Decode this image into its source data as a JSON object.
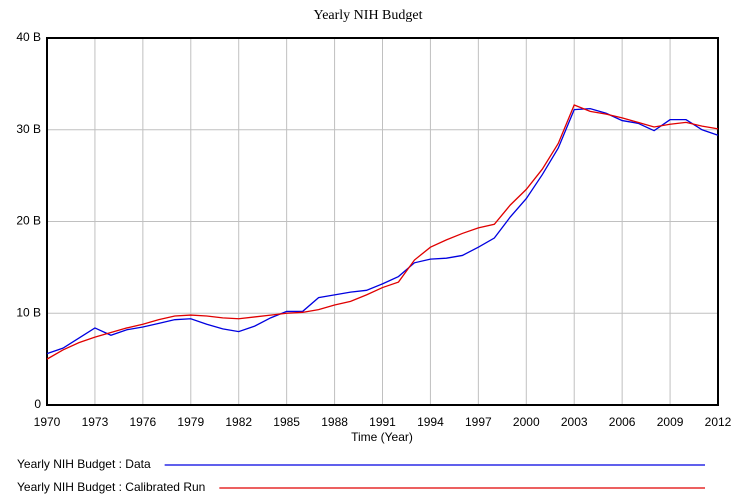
{
  "chart_data": {
    "type": "line",
    "title": "Yearly NIH Budget",
    "xlabel": "Time (Year)",
    "x": [
      1970,
      1971,
      1972,
      1973,
      1974,
      1975,
      1976,
      1977,
      1978,
      1979,
      1980,
      1981,
      1982,
      1983,
      1984,
      1985,
      1986,
      1987,
      1988,
      1989,
      1990,
      1991,
      1992,
      1993,
      1994,
      1995,
      1996,
      1997,
      1998,
      1999,
      2000,
      2001,
      2002,
      2003,
      2004,
      2005,
      2006,
      2007,
      2008,
      2009,
      2010,
      2011,
      2012
    ],
    "series": [
      {
        "name": "Yearly NIH Budget : Data",
        "color": "#0000e0",
        "values": [
          5.6,
          6.2,
          7.3,
          8.4,
          7.6,
          8.2,
          8.5,
          8.9,
          9.3,
          9.4,
          8.8,
          8.3,
          8.0,
          8.6,
          9.5,
          10.2,
          10.2,
          11.7,
          12.0,
          12.3,
          12.5,
          13.2,
          14.0,
          15.5,
          15.9,
          16.0,
          16.3,
          17.2,
          18.2,
          20.5,
          22.5,
          25.1,
          28.0,
          32.2,
          32.3,
          31.8,
          31.0,
          30.7,
          29.9,
          31.1,
          31.1,
          30.0,
          29.4
        ]
      },
      {
        "name": "Yearly NIH Budget : Calibrated Run",
        "color": "#e00000",
        "values": [
          5.0,
          6.0,
          6.8,
          7.4,
          7.9,
          8.4,
          8.8,
          9.3,
          9.7,
          9.8,
          9.7,
          9.5,
          9.4,
          9.6,
          9.8,
          10.0,
          10.1,
          10.4,
          10.9,
          11.3,
          12.0,
          12.8,
          13.4,
          15.8,
          17.2,
          18.0,
          18.7,
          19.3,
          19.7,
          21.8,
          23.5,
          25.7,
          28.5,
          32.7,
          32.0,
          31.7,
          31.3,
          30.8,
          30.3,
          30.6,
          30.8,
          30.4,
          30.1
        ]
      }
    ],
    "xlim": [
      1970,
      2012
    ],
    "xticks": [
      1970,
      1973,
      1976,
      1979,
      1982,
      1985,
      1988,
      1991,
      1994,
      1997,
      2000,
      2003,
      2006,
      2009,
      2012
    ],
    "ylim": [
      0,
      40
    ],
    "yticks": [
      0,
      {
        "value": 10,
        "label": "10 B"
      },
      {
        "value": 20,
        "label": "20 B"
      },
      {
        "value": 30,
        "label": "30 B"
      },
      {
        "value": 40,
        "label": "40 B"
      }
    ],
    "grid": true
  }
}
